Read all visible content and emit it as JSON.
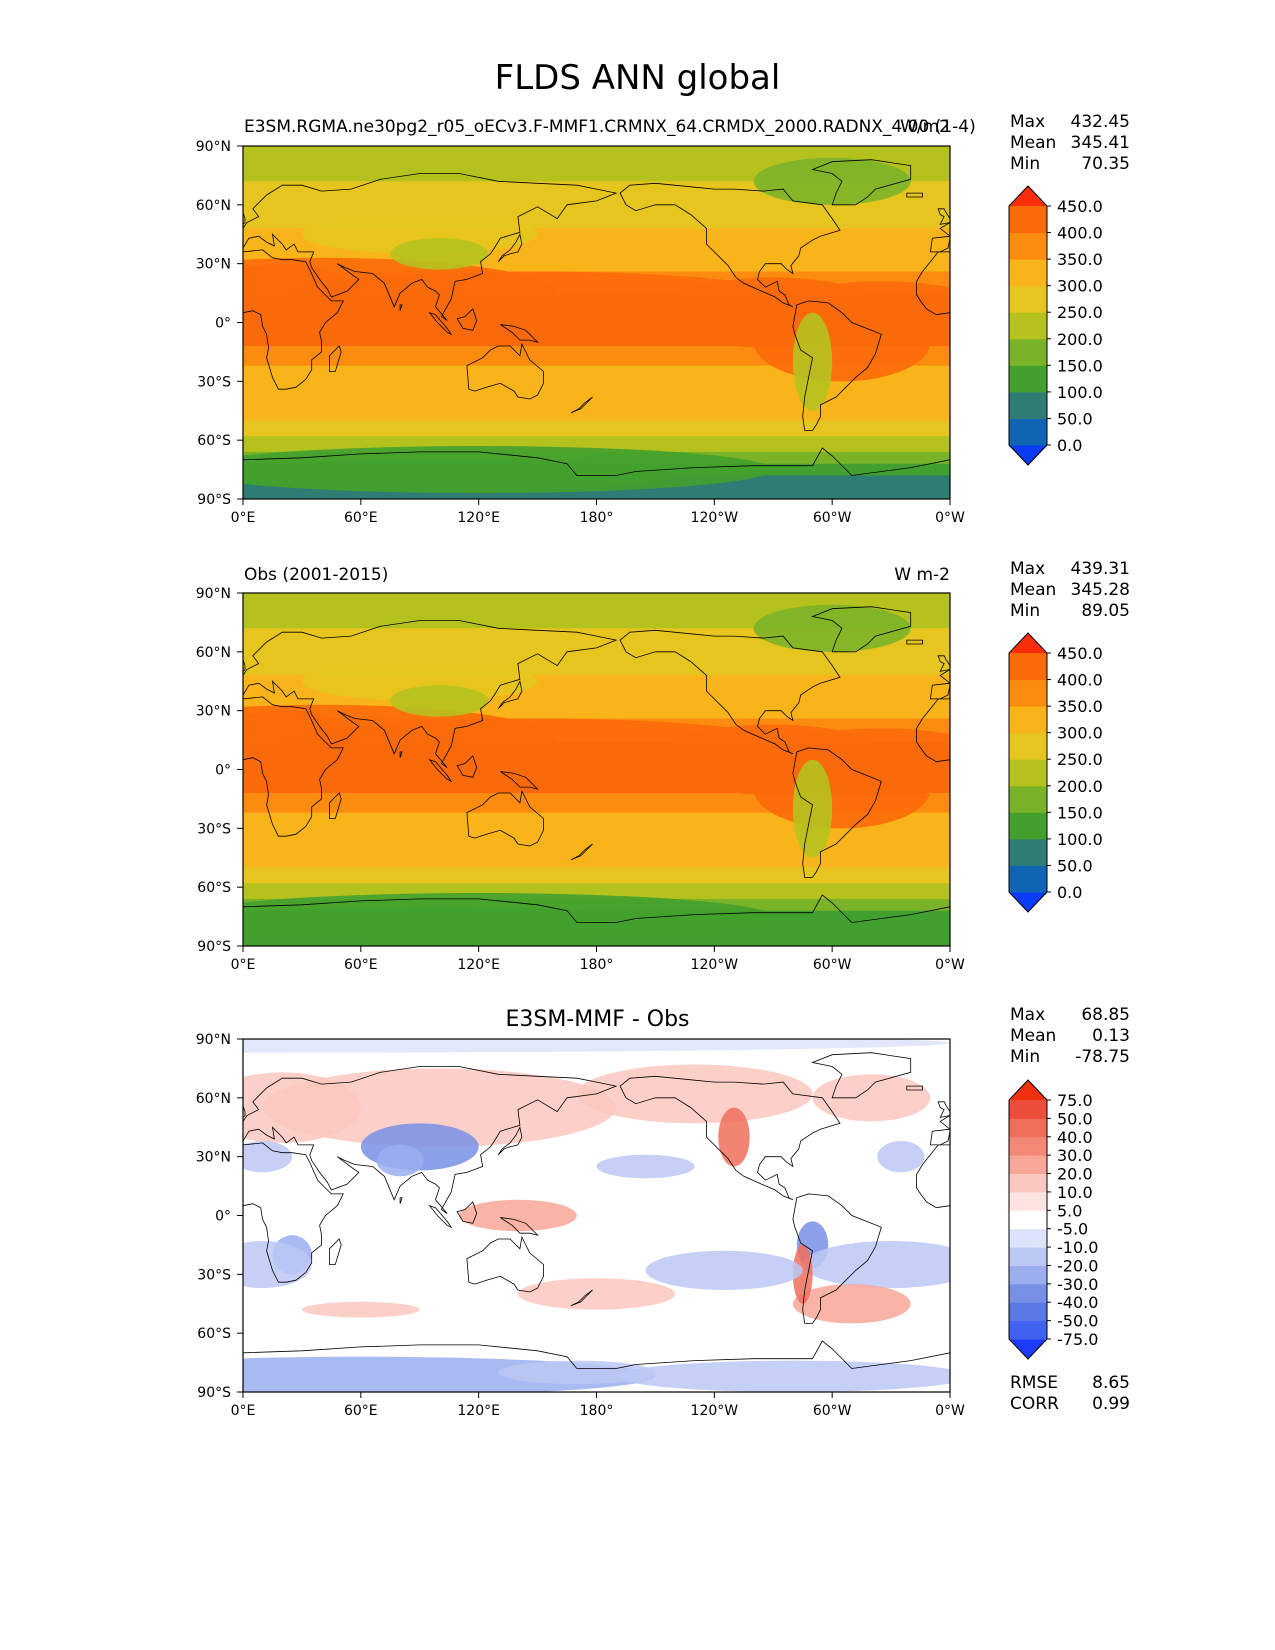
{
  "figure": {
    "title": "FLDS ANN global"
  },
  "chart_data": [
    {
      "type": "heatmap",
      "panel": "test",
      "title_left": "E3SM.RGMA.ne30pg2_r05_oECv3.F-MMF1.CRMNX_64.CRMDX_2000.RADNX_4.00 (1-4)",
      "title_right": "W/m2",
      "stats": {
        "max_label": "Max",
        "max": "432.45",
        "mean_label": "Mean",
        "mean": "345.41",
        "min_label": "Min",
        "min": "70.35"
      },
      "colorbar_levels": [
        "0.0",
        "50.0",
        "100.0",
        "150.0",
        "200.0",
        "250.0",
        "300.0",
        "350.0",
        "400.0",
        "450.0"
      ],
      "xticks": [
        "0°E",
        "60°E",
        "120°E",
        "180°",
        "120°W",
        "60°W",
        "0°W"
      ],
      "yticks": [
        "90°N",
        "60°N",
        "30°N",
        "0°",
        "30°S",
        "60°S",
        "90°S"
      ]
    },
    {
      "type": "heatmap",
      "panel": "reference",
      "title_left": "Obs (2001-2015)",
      "title_right": "W m-2",
      "stats": {
        "max_label": "Max",
        "max": "439.31",
        "mean_label": "Mean",
        "mean": "345.28",
        "min_label": "Min",
        "min": "89.05"
      },
      "colorbar_levels": [
        "0.0",
        "50.0",
        "100.0",
        "150.0",
        "200.0",
        "250.0",
        "300.0",
        "350.0",
        "400.0",
        "450.0"
      ],
      "xticks": [
        "0°E",
        "60°E",
        "120°E",
        "180°",
        "120°W",
        "60°W",
        "0°W"
      ],
      "yticks": [
        "90°N",
        "60°N",
        "30°N",
        "0°",
        "30°S",
        "60°S",
        "90°S"
      ]
    },
    {
      "type": "heatmap",
      "panel": "difference",
      "title_center": "E3SM-MMF - Obs",
      "stats": {
        "max_label": "Max",
        "max": "68.85",
        "mean_label": "Mean",
        "mean": "0.13",
        "min_label": "Min",
        "min": "-78.75"
      },
      "extra_stats": {
        "rmse_label": "RMSE",
        "rmse": "8.65",
        "corr_label": "CORR",
        "corr": "0.99"
      },
      "colorbar_levels": [
        "-75.0",
        "-50.0",
        "-40.0",
        "-30.0",
        "-20.0",
        "-10.0",
        "-5.0",
        "5.0",
        "10.0",
        "20.0",
        "30.0",
        "40.0",
        "50.0",
        "75.0"
      ],
      "xticks": [
        "0°E",
        "60°E",
        "120°E",
        "180°",
        "120°W",
        "60°W",
        "0°W"
      ],
      "yticks": [
        "90°N",
        "60°N",
        "30°N",
        "0°",
        "30°S",
        "60°S",
        "90°S"
      ]
    }
  ],
  "colors": {
    "abs_scale": [
      "#0a3cf5",
      "#0f64b4",
      "#2e7d75",
      "#42a12e",
      "#7bb328",
      "#b5c21e",
      "#e6c61e",
      "#f9b41a",
      "#fc8c10",
      "#fb6a0a",
      "#fc2d0a"
    ],
    "diff_scale": [
      "#1a3cfa",
      "#3f62f0",
      "#5a78e6",
      "#7890e6",
      "#9aaef0",
      "#bcc8f4",
      "#dde3fa",
      "#ffffff",
      "#fde4e0",
      "#fbc8bf",
      "#f8a698",
      "#f48877",
      "#f06e5c",
      "#ec4e3b",
      "#f03010"
    ]
  }
}
